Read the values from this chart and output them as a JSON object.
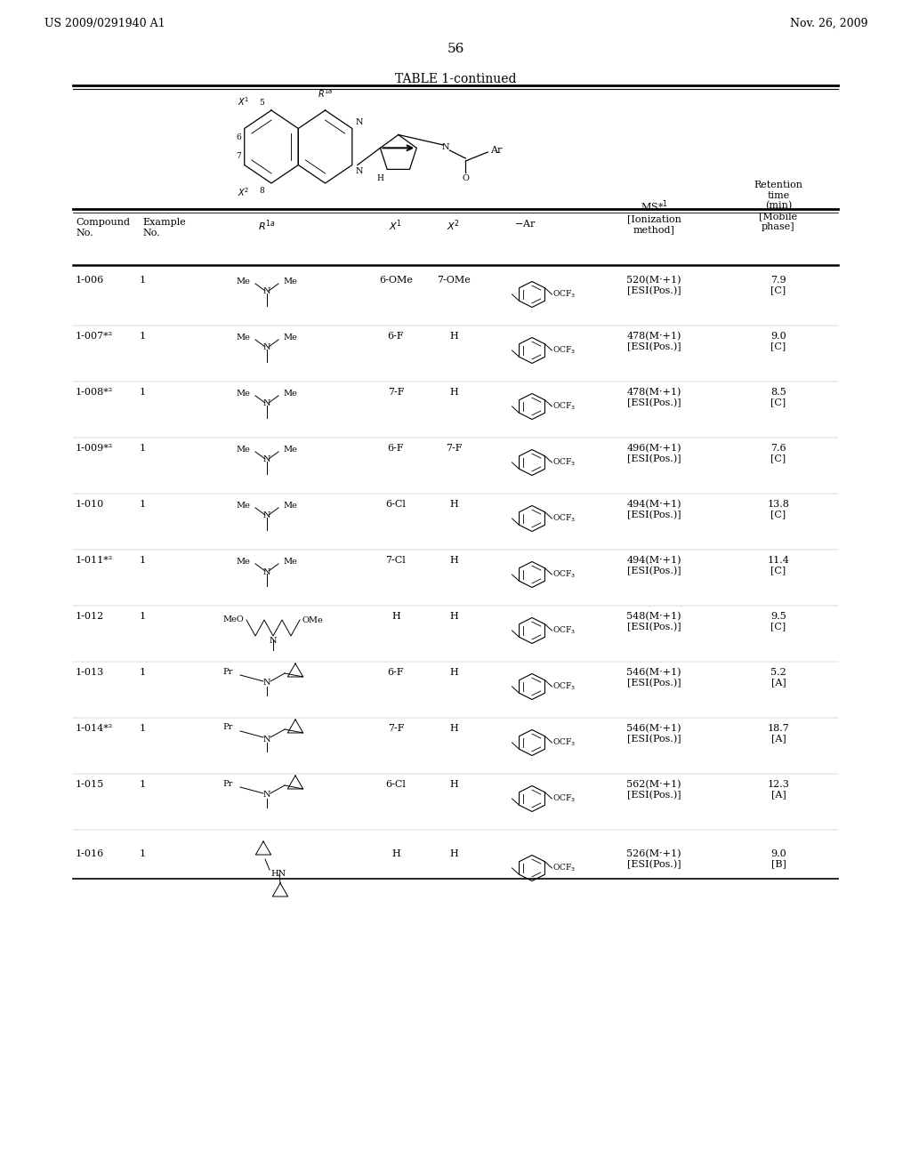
{
  "patent_number": "US 2009/0291940 A1",
  "date": "Nov. 26, 2009",
  "page_number": "56",
  "table_title": "TABLE 1-continued",
  "rows": [
    {
      "compound": "1-006",
      "example": "1",
      "r1a": "NMe2_simple",
      "x1": "6-OMe",
      "x2": "7-OMe",
      "ms": "520(M·+1)\n[ESI(Pos.)]",
      "retention": "7.9\n[C]"
    },
    {
      "compound": "1-007*²",
      "example": "1",
      "r1a": "NMe2_simple",
      "x1": "6-F",
      "x2": "H",
      "ms": "478(M·+1)\n[ESI(Pos.)]",
      "retention": "9.0\n[C]"
    },
    {
      "compound": "1-008*²",
      "example": "1",
      "r1a": "NMe2_simple",
      "x1": "7-F",
      "x2": "H",
      "ms": "478(M·+1)\n[ESI(Pos.)]",
      "retention": "8.5\n[C]"
    },
    {
      "compound": "1-009*²",
      "example": "1",
      "r1a": "NMe2_simple",
      "x1": "6-F",
      "x2": "7-F",
      "ms": "496(M·+1)\n[ESI(Pos.)]",
      "retention": "7.6\n[C]"
    },
    {
      "compound": "1-010",
      "example": "1",
      "r1a": "NMe2_simple",
      "x1": "6-Cl",
      "x2": "H",
      "ms": "494(M·+1)\n[ESI(Pos.)]",
      "retention": "13.8\n[C]"
    },
    {
      "compound": "1-011*²",
      "example": "1",
      "r1a": "NMe2_simple",
      "x1": "7-Cl",
      "x2": "H",
      "ms": "494(M·+1)\n[ESI(Pos.)]",
      "retention": "11.4\n[C]"
    },
    {
      "compound": "1-012",
      "example": "1",
      "r1a": "MeO_chain",
      "x1": "H",
      "x2": "H",
      "ms": "548(M·+1)\n[ESI(Pos.)]",
      "retention": "9.5\n[C]"
    },
    {
      "compound": "1-013",
      "example": "1",
      "r1a": "Pr_cyclopropyl",
      "x1": "6-F",
      "x2": "H",
      "ms": "546(M·+1)\n[ESI(Pos.)]",
      "retention": "5.2\n[A]"
    },
    {
      "compound": "1-014*²",
      "example": "1",
      "r1a": "Pr_cyclopropyl",
      "x1": "7-F",
      "x2": "H",
      "ms": "546(M·+1)\n[ESI(Pos.)]",
      "retention": "18.7\n[A]"
    },
    {
      "compound": "1-015",
      "example": "1",
      "r1a": "Pr_cyclopropyl",
      "x1": "6-Cl",
      "x2": "H",
      "ms": "562(M·+1)\n[ESI(Pos.)]",
      "retention": "12.3\n[A]"
    },
    {
      "compound": "1-016",
      "example": "1",
      "r1a": "dicyclopropyl_NH",
      "x1": "H",
      "x2": "H",
      "ms": "526(M·+1)\n[ESI(Pos.)]",
      "retention": "9.0\n[B]"
    }
  ],
  "background_color": "#ffffff"
}
